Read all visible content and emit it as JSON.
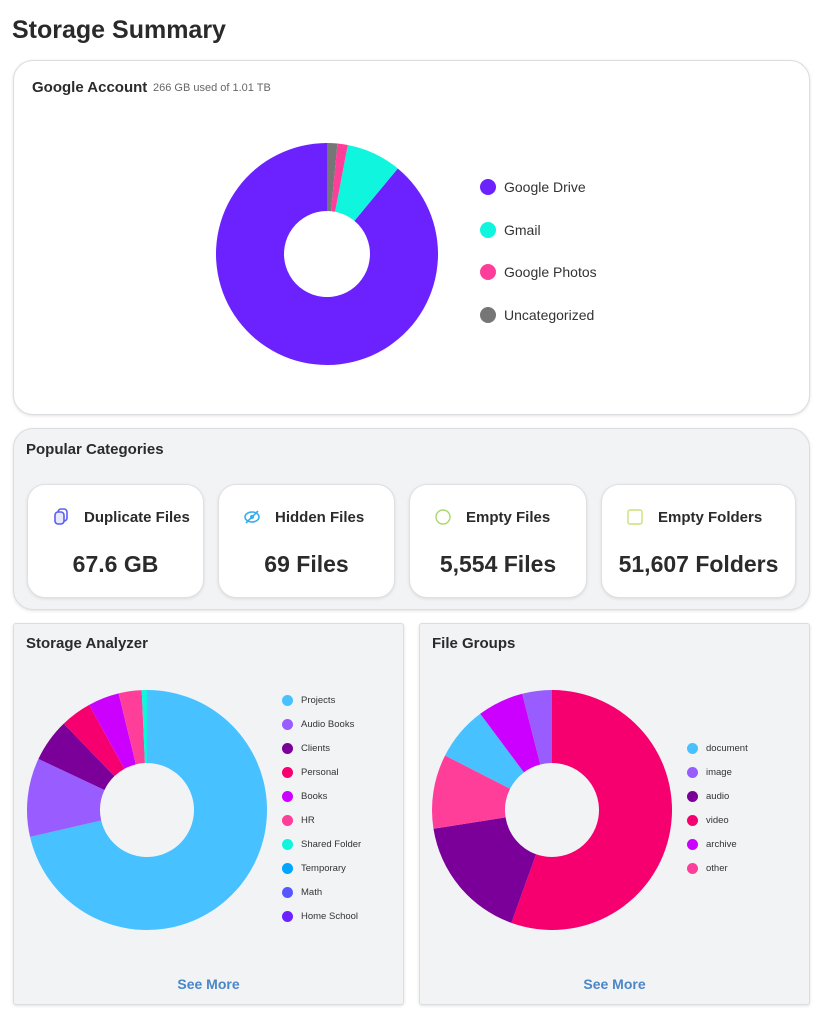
{
  "page_title": "Storage Summary",
  "google_account": {
    "title": "Google Account",
    "usage": "266 GB used of 1.01 TB",
    "chart_data": {
      "type": "pie",
      "donut": true,
      "categories": [
        "Google Drive",
        "Gmail",
        "Google Photos",
        "Uncategorized"
      ],
      "values": [
        89,
        8,
        1.5,
        1.5
      ],
      "unit": "%",
      "colors": [
        "#6b22ff",
        "#10f5dd",
        "#ff3e9a",
        "#767676"
      ],
      "draw_order": [
        0,
        1,
        2,
        3
      ],
      "direction": "counterclockwise-from-top",
      "legend": "right"
    }
  },
  "popular": {
    "title": "Popular Categories",
    "tiles": [
      {
        "label": "Duplicate Files",
        "value": "67.6 GB",
        "icon": "copy-icon",
        "icon_color": "#5b5ef0",
        "icon_bg": "#e9e9fc"
      },
      {
        "label": "Hidden Files",
        "value": "69 Files",
        "icon": "eye-slash-icon",
        "icon_color": "#35aef0",
        "icon_bg": "#e5f4fd"
      },
      {
        "label": "Empty Files",
        "value": "5,554 Files",
        "icon": "circle-icon",
        "icon_color": "#a7d86a",
        "icon_bg": "#f3f9ec"
      },
      {
        "label": "Empty Folders",
        "value": "51,607 Folders",
        "icon": "square-icon",
        "icon_color": "#c9e07a",
        "icon_bg": "#f6faea"
      }
    ]
  },
  "storage_analyzer": {
    "title": "Storage Analyzer",
    "see_more": "See More",
    "chart_data": {
      "type": "pie",
      "donut": true,
      "categories": [
        "Projects",
        "Audio Books",
        "Clients",
        "Personal",
        "Books",
        "HR",
        "Shared Folder",
        "Temporary",
        "Math",
        "Home School"
      ],
      "values": [
        71.4,
        10.6,
        5.8,
        4.2,
        4.2,
        3.1,
        0.7,
        0,
        0,
        0
      ],
      "unit": "%",
      "colors": [
        "#47c1ff",
        "#985cff",
        "#7a0099",
        "#f5006e",
        "#cc00ff",
        "#ff3e9a",
        "#10f5dd",
        "#00a5ff",
        "#5558ff",
        "#6b22ff"
      ],
      "draw_order": [
        0,
        1,
        2,
        3,
        4,
        5,
        6,
        7,
        8,
        9
      ],
      "legend": "right"
    }
  },
  "file_groups": {
    "title": "File Groups",
    "see_more": "See More",
    "chart_data": {
      "type": "pie",
      "donut": true,
      "categories": [
        "document",
        "image",
        "audio",
        "video",
        "archive",
        "other"
      ],
      "values": [
        7.3,
        4,
        17,
        55.5,
        6.2,
        10
      ],
      "unit": "%",
      "colors": [
        "#47c1ff",
        "#985cff",
        "#7a0099",
        "#f5006e",
        "#cc00ff",
        "#ff3e9a"
      ],
      "draw_order": [
        3,
        2,
        5,
        0,
        4,
        1
      ],
      "legend": "right"
    }
  }
}
